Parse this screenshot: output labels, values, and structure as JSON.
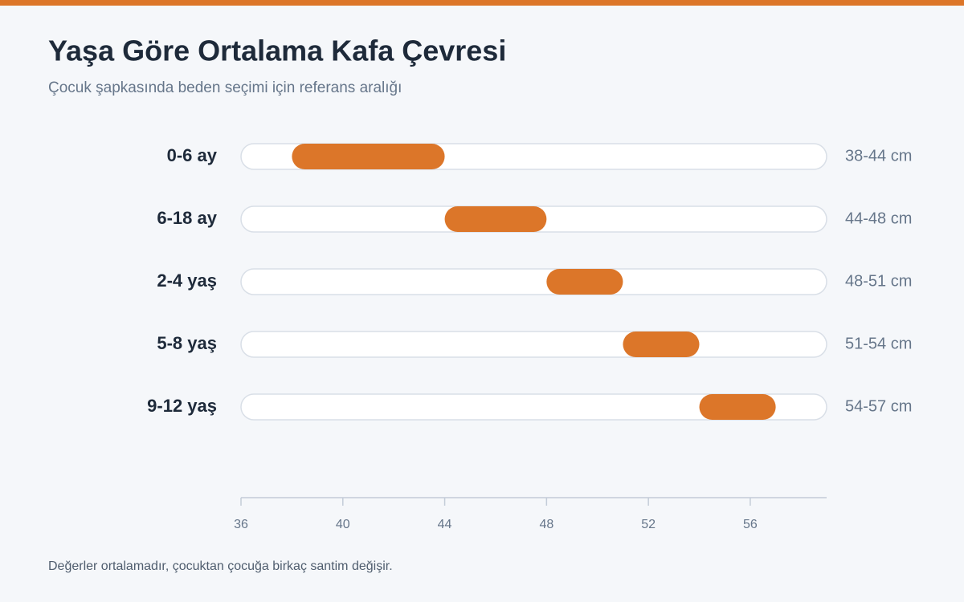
{
  "chart_data": {
    "type": "range_bar",
    "title": "Yaşa Göre Ortalama Kafa Çevresi",
    "subtitle": "Çocuk şapkasında beden seçimi için referans aralığı",
    "footnote": "Değerler ortalamadır, çocuktan çocuğa birkaç santim değişir.",
    "categories": [
      "0-6 ay",
      "6-18 ay",
      "2-4 yaş",
      "5-8 yaş",
      "9-12 yaş"
    ],
    "low": [
      38,
      44,
      48,
      51,
      54
    ],
    "high": [
      44,
      48,
      51,
      54,
      57
    ],
    "value_labels": [
      "38-44 cm",
      "44-48 cm",
      "48-51 cm",
      "51-54 cm",
      "54-57 cm"
    ],
    "color": "#dc7629",
    "xlim": [
      36,
      59
    ],
    "xticks": [
      36,
      40,
      44,
      48,
      52,
      56
    ]
  }
}
